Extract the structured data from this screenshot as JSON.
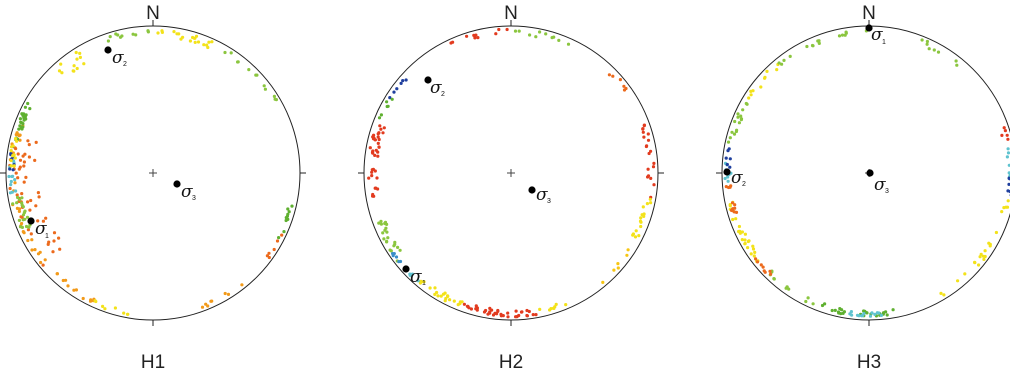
{
  "north_label": "N",
  "stress_symbol": "σ",
  "colors": {
    "outline": "#222222",
    "stress_marker": "#000000",
    "palette": [
      "#1f3f9e",
      "#3a8ec8",
      "#5fc3cf",
      "#2aa2b0",
      "#8bc63f",
      "#5fb030",
      "#f3e21a",
      "#f7c613",
      "#f29a1a",
      "#ec6a1d",
      "#e23b1f"
    ]
  },
  "stereonets": [
    {
      "label": "H1",
      "stress_axes": [
        {
          "name": "σ1",
          "index": "1"
        },
        {
          "name": "σ2",
          "index": "2"
        },
        {
          "name": "σ3",
          "index": "3"
        }
      ]
    },
    {
      "label": "H2",
      "stress_axes": [
        {
          "name": "σ1",
          "index": "1"
        },
        {
          "name": "σ2",
          "index": "2"
        },
        {
          "name": "σ3",
          "index": "3"
        }
      ]
    },
    {
      "label": "H3",
      "stress_axes": [
        {
          "name": "σ1",
          "index": "1"
        },
        {
          "name": "σ2",
          "index": "2"
        },
        {
          "name": "σ3",
          "index": "3"
        }
      ]
    }
  ]
}
